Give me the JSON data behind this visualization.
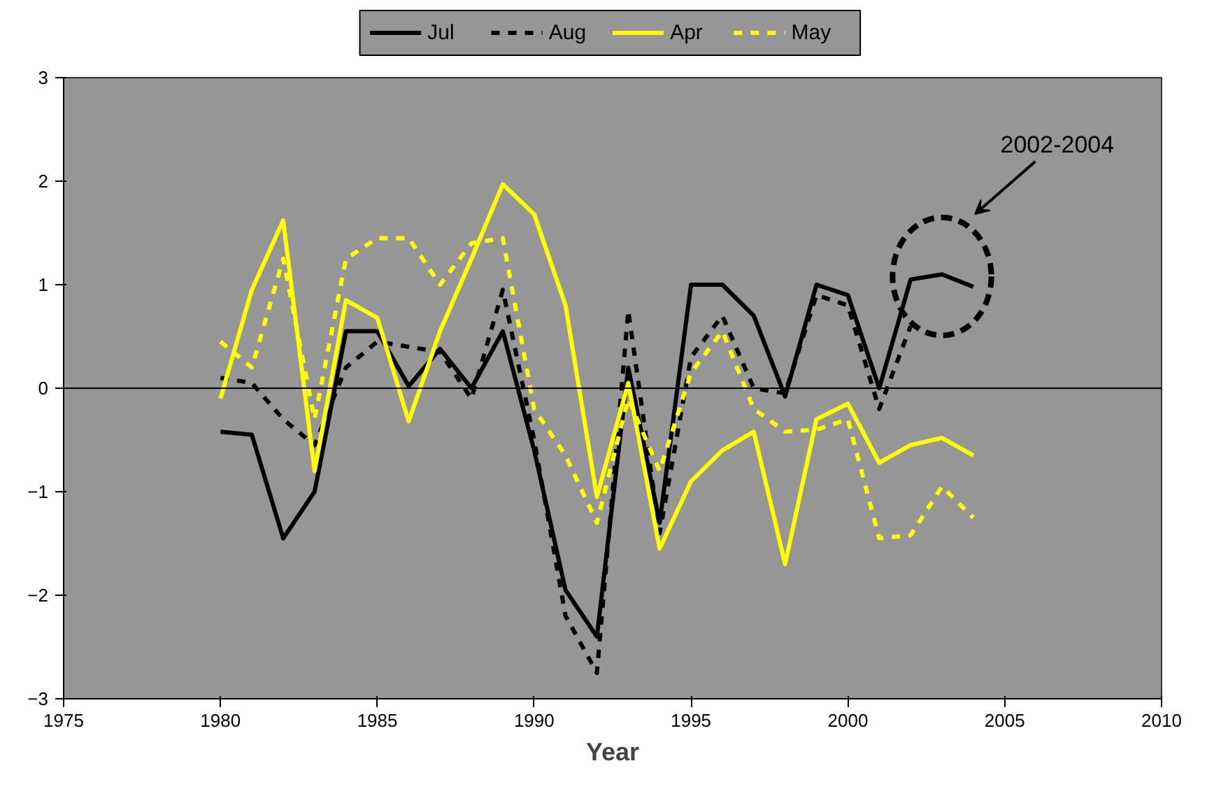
{
  "chart_data": {
    "type": "line",
    "xlabel": "Year",
    "x": [
      1980,
      1981,
      1982,
      1983,
      1984,
      1985,
      1986,
      1987,
      1988,
      1989,
      1990,
      1991,
      1992,
      1993,
      1994,
      1995,
      1996,
      1997,
      1998,
      1999,
      2000,
      2001,
      2002,
      2003,
      2004
    ],
    "series": [
      {
        "name": "Jul",
        "color": "#000000",
        "line_style": "solid",
        "values": [
          -0.42,
          -0.45,
          -1.45,
          -1.0,
          0.55,
          0.55,
          0.02,
          0.38,
          0.0,
          0.55,
          -0.6,
          -1.95,
          -2.4,
          0.2,
          -1.3,
          1.0,
          1.0,
          0.7,
          -0.08,
          1.0,
          0.9,
          0.0,
          1.05,
          1.1,
          0.98
        ]
      },
      {
        "name": "Aug",
        "color": "#000000",
        "line_style": "dashed",
        "values": [
          0.1,
          0.05,
          -0.3,
          -0.55,
          0.2,
          0.45,
          0.4,
          0.35,
          -0.1,
          0.95,
          -0.5,
          -2.2,
          -2.75,
          0.75,
          -1.4,
          0.3,
          0.7,
          0.0,
          -0.05,
          0.9,
          0.8,
          -0.2,
          0.6,
          null,
          null
        ]
      },
      {
        "name": "Apr",
        "color": "#ffff00",
        "line_style": "solid",
        "values": [
          -0.1,
          0.95,
          1.62,
          -0.8,
          0.85,
          0.68,
          -0.32,
          0.55,
          1.25,
          1.97,
          1.68,
          0.8,
          -1.05,
          0.05,
          -1.55,
          -0.9,
          -0.6,
          -0.42,
          -1.7,
          -0.3,
          -0.15,
          -0.72,
          -0.55,
          -0.48,
          -0.65
        ]
      },
      {
        "name": "May",
        "color": "#ffff00",
        "line_style": "dashed",
        "values": [
          0.45,
          0.2,
          1.25,
          -0.3,
          1.25,
          1.45,
          1.45,
          1.0,
          1.4,
          1.45,
          -0.2,
          -0.65,
          -1.3,
          -0.1,
          -0.8,
          0.15,
          0.55,
          -0.2,
          -0.42,
          -0.4,
          -0.3,
          -1.45,
          -1.42,
          -0.95,
          -1.25
        ]
      }
    ],
    "xlim": [
      1975,
      2010
    ],
    "xticks": [
      1975,
      1980,
      1985,
      1990,
      1995,
      2000,
      2005,
      2010
    ],
    "ylim": [
      -3,
      3
    ],
    "yticks": [
      -3,
      -2,
      -1,
      0,
      1,
      2,
      3
    ],
    "ref_lines": [
      {
        "axis": "y",
        "value": 0,
        "color": "#000000"
      }
    ],
    "annotations": [
      "2002-2004"
    ],
    "grid": false,
    "legend": "top",
    "marker": "none"
  }
}
